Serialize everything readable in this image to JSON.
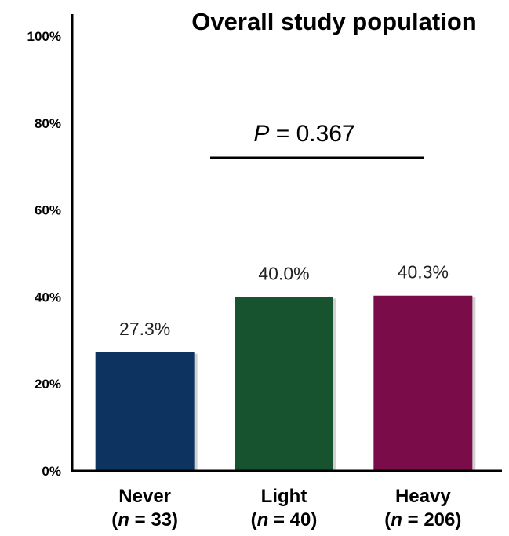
{
  "chart_data": {
    "type": "bar",
    "title": "Overall study population",
    "categories": [
      "Never",
      "Light",
      "Heavy"
    ],
    "subtitles": [
      {
        "pre": "(",
        "n": "n",
        "post": " = 33)"
      },
      {
        "pre": "(",
        "n": "n",
        "post": " = 40)"
      },
      {
        "pre": "(",
        "n": "n",
        "post": " = 206)"
      }
    ],
    "values": [
      27.3,
      40.0,
      40.3
    ],
    "value_labels": [
      "27.3%",
      "40.0%",
      "40.3%"
    ],
    "colors": [
      "#0d3460",
      "#17532e",
      "#7b0c4a"
    ],
    "ylim": [
      0,
      100
    ],
    "yticks": [
      0,
      20,
      40,
      60,
      80,
      100
    ],
    "ytick_labels": [
      "0%",
      "20%",
      "40%",
      "60%",
      "80%",
      "100%"
    ],
    "annotation": {
      "p_symbol": "P",
      "p_text": " = 0.367"
    },
    "grid": false,
    "xlabel": "",
    "ylabel": ""
  }
}
